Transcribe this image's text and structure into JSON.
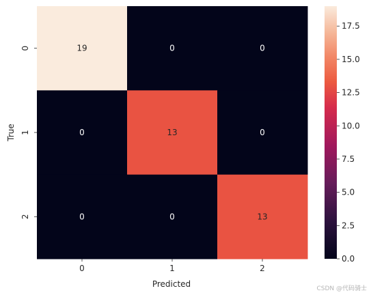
{
  "chart_data": {
    "type": "heatmap",
    "x_categories": [
      "0",
      "1",
      "2"
    ],
    "y_categories": [
      "0",
      "1",
      "2"
    ],
    "values": [
      [
        19,
        0,
        0
      ],
      [
        0,
        13,
        0
      ],
      [
        0,
        0,
        13
      ]
    ],
    "xlabel": "Predicted",
    "ylabel": "True",
    "colorbar": {
      "range": [
        0,
        19
      ],
      "ticks": [
        "0.0",
        "2.5",
        "5.0",
        "7.5",
        "10.0",
        "12.5",
        "15.0",
        "17.5"
      ],
      "colormap": "rocket"
    },
    "colors": {
      "low": "#03051a",
      "high": "#faebdd",
      "text_light": "#ffffff",
      "text_dark": "#262626"
    }
  },
  "watermark": "CSDN @代码骑士"
}
